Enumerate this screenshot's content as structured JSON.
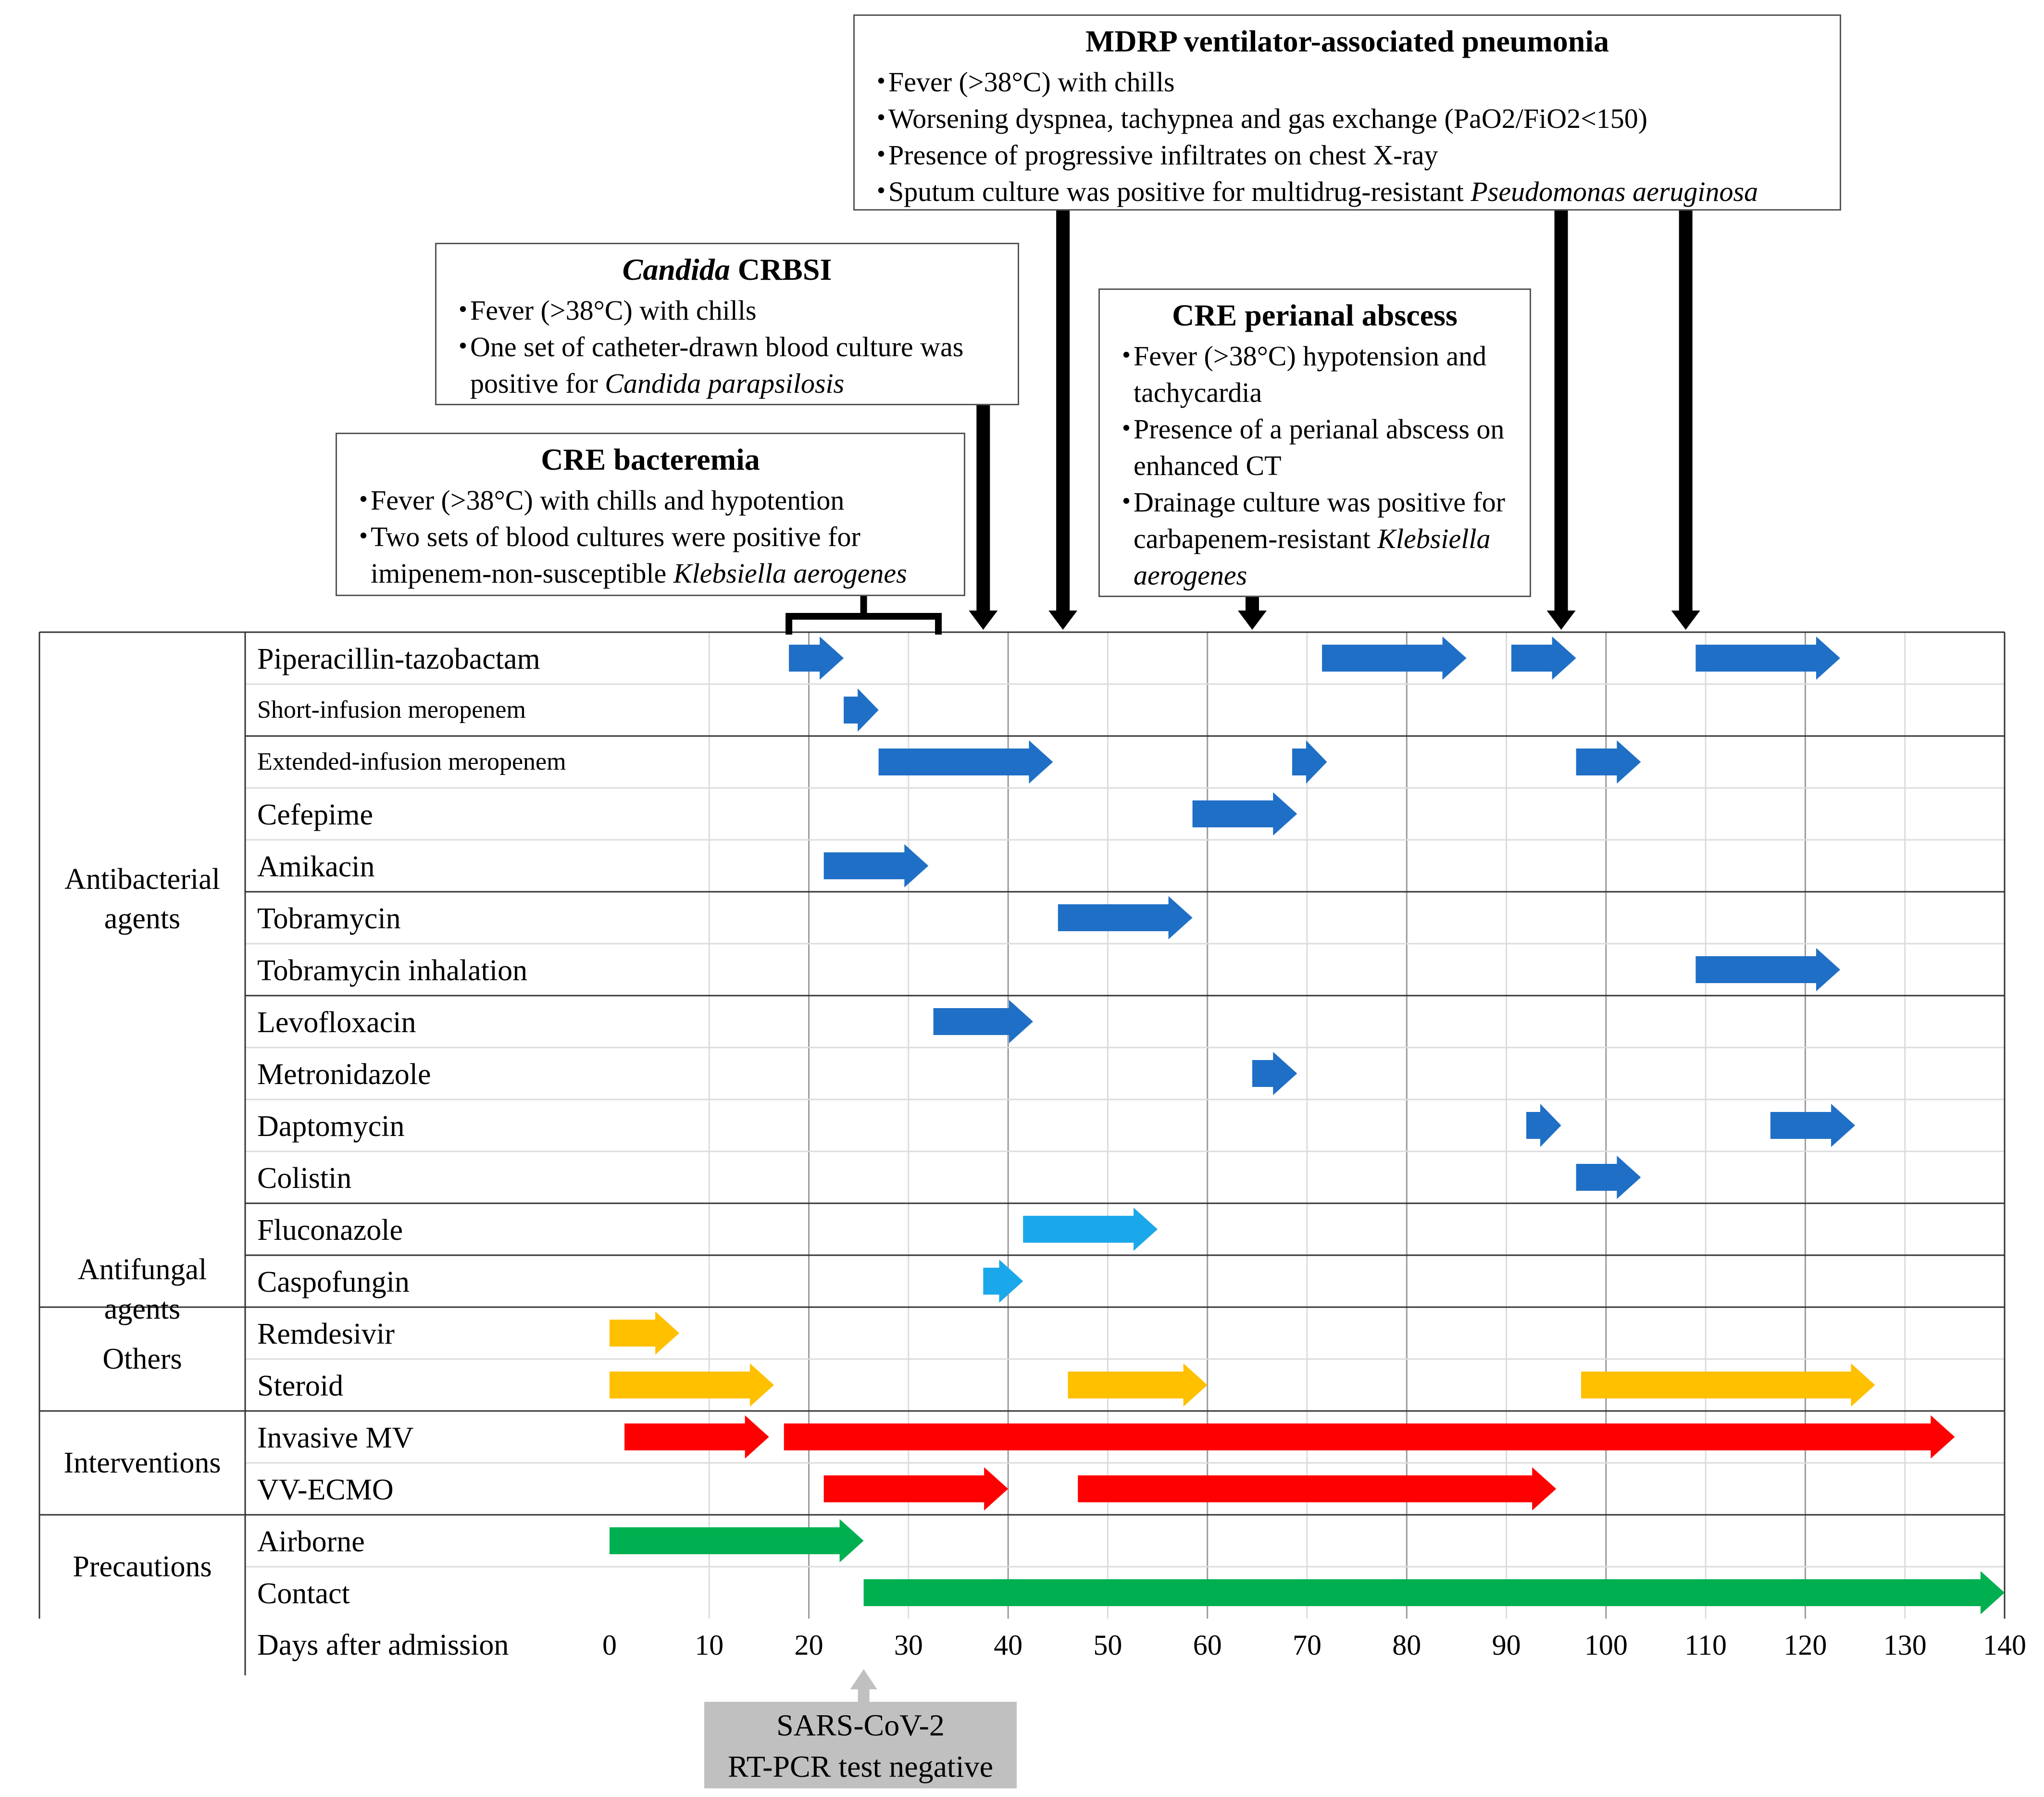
{
  "chart_data": {
    "type": "timeline",
    "xlabel": "Days after admission",
    "xlim": [
      0,
      140
    ],
    "xticks": [
      0,
      10,
      20,
      30,
      40,
      50,
      60,
      70,
      80,
      90,
      100,
      110,
      120,
      130,
      140
    ],
    "groups": [
      {
        "label": "Antibacterial agents",
        "first_row": 0,
        "last_row": 10
      },
      {
        "label": "Antifungal agents",
        "first_row": 11,
        "last_row": 12
      },
      {
        "label": "Others",
        "first_row": 13,
        "last_row": 14
      },
      {
        "label": "Interventions",
        "first_row": 15,
        "last_row": 16
      },
      {
        "label": "Precautions",
        "first_row": 17,
        "last_row": 18
      }
    ],
    "rows": [
      {
        "label": "Piperacillin-tazobactam",
        "color": "#1f6fc6",
        "small": false,
        "bars": [
          [
            18,
            23.5
          ],
          [
            71.5,
            86
          ],
          [
            90.5,
            97
          ],
          [
            109,
            123.5
          ]
        ]
      },
      {
        "label": "Short-infusion meropenem",
        "color": "#1f6fc6",
        "small": true,
        "bars": [
          [
            23.5,
            27
          ]
        ]
      },
      {
        "label": "Extended-infusion meropenem",
        "color": "#1f6fc6",
        "small": true,
        "bars": [
          [
            27,
            44.5
          ],
          [
            68.5,
            72
          ],
          [
            97,
            103.5
          ]
        ]
      },
      {
        "label": "Cefepime",
        "color": "#1f6fc6",
        "small": false,
        "bars": [
          [
            58.5,
            69
          ]
        ]
      },
      {
        "label": "Amikacin",
        "color": "#1f6fc6",
        "small": false,
        "bars": [
          [
            21.5,
            32
          ]
        ]
      },
      {
        "label": "Tobramycin",
        "color": "#1f6fc6",
        "small": false,
        "bars": [
          [
            45,
            58.5
          ]
        ]
      },
      {
        "label": "Tobramycin inhalation",
        "color": "#1f6fc6",
        "small": false,
        "bars": [
          [
            109,
            123.5
          ]
        ]
      },
      {
        "label": "Levofloxacin",
        "color": "#1f6fc6",
        "small": false,
        "bars": [
          [
            32.5,
            42.5
          ]
        ]
      },
      {
        "label": "Metronidazole",
        "color": "#1f6fc6",
        "small": false,
        "bars": [
          [
            64.5,
            69
          ]
        ]
      },
      {
        "label": "Daptomycin",
        "color": "#1f6fc6",
        "small": false,
        "bars": [
          [
            92,
            95.5
          ],
          [
            116.5,
            125
          ]
        ]
      },
      {
        "label": "Colistin",
        "color": "#1f6fc6",
        "small": false,
        "bars": [
          [
            97,
            103.5
          ]
        ]
      },
      {
        "label": "Fluconazole",
        "color": "#1ba8ea",
        "small": false,
        "bars": [
          [
            41.5,
            55
          ]
        ]
      },
      {
        "label": "Caspofungin",
        "color": "#1ba8ea",
        "small": false,
        "bars": [
          [
            37.5,
            41.5
          ]
        ]
      },
      {
        "label": "Remdesivir",
        "color": "#ffc000",
        "small": false,
        "bars": [
          [
            0,
            7
          ]
        ]
      },
      {
        "label": "Steroid",
        "color": "#ffc000",
        "small": false,
        "bars": [
          [
            0,
            16.5
          ],
          [
            46,
            60
          ],
          [
            97.5,
            127
          ]
        ]
      },
      {
        "label": "Invasive MV",
        "color": "#ff0000",
        "small": false,
        "bars": [
          [
            1.5,
            16
          ],
          [
            17.5,
            135
          ]
        ]
      },
      {
        "label": "VV-ECMO",
        "color": "#ff0000",
        "small": false,
        "bars": [
          [
            21.5,
            40
          ],
          [
            47,
            95
          ]
        ]
      },
      {
        "label": "Airborne",
        "color": "#00b050",
        "small": false,
        "bars": [
          [
            0,
            25.5
          ]
        ]
      },
      {
        "label": "Contact",
        "color": "#00b050",
        "small": false,
        "bars": [
          [
            25.5,
            140
          ]
        ]
      }
    ],
    "events": [
      {
        "title_parts": [
          {
            "text": "MDRP ventilator-associated pneumonia",
            "italic": false
          }
        ],
        "items": [
          [
            {
              "text": "Fever (>38°C) with chills",
              "italic": false
            }
          ],
          [
            {
              "text": "Worsening dyspnea, tachypnea and gas exchange (PaO2/FiO2<150)",
              "italic": false
            }
          ],
          [
            {
              "text": "Presence of progressive infiltrates on chest X-ray",
              "italic": false
            }
          ],
          [
            {
              "text": "Sputum culture was positive for multidrug-resistant ",
              "italic": false
            },
            {
              "text": "Pseudomonas aeruginosa",
              "italic": true
            }
          ]
        ],
        "marker_days": [
          45.5,
          95.5,
          108
        ]
      },
      {
        "title_parts": [
          {
            "text": "Candida",
            "italic": true
          },
          {
            "text": " CRBSI",
            "italic": false
          }
        ],
        "items": [
          [
            {
              "text": "Fever (>38°C) with chills",
              "italic": false
            }
          ],
          [
            {
              "text": "One set of catheter-drawn blood culture was positive for ",
              "italic": false
            },
            {
              "text": "Candida parapsilosis",
              "italic": true
            }
          ]
        ],
        "marker_days": [
          37.5
        ]
      },
      {
        "title_parts": [
          {
            "text": "CRE perianal abscess",
            "italic": false
          }
        ],
        "items": [
          [
            {
              "text": "Fever (>38°C) hypotension and tachycardia",
              "italic": false
            }
          ],
          [
            {
              "text": "Presence of a perianal abscess on enhanced CT",
              "italic": false
            }
          ],
          [
            {
              "text": "Drainage culture was positive for carbapenem-resistant ",
              "italic": false
            },
            {
              "text": "Klebsiella aerogenes",
              "italic": true
            }
          ]
        ],
        "marker_days": [
          64.5
        ]
      },
      {
        "title_parts": [
          {
            "text": "CRE bacteremia",
            "italic": false
          }
        ],
        "items": [
          [
            {
              "text": "Fever (>38°C) with chills and hypotention",
              "italic": false
            }
          ],
          [
            {
              "text": "Two sets of blood cultures were positive for imipenem-non-susceptible ",
              "italic": false
            },
            {
              "text": "Klebsiella aerogenes",
              "italic": true
            }
          ]
        ],
        "bracket_days": [
          18,
          33
        ]
      }
    ],
    "annotation": {
      "lines": [
        "SARS-CoV-2",
        "RT-PCR test negative"
      ],
      "day": 25.5,
      "color": "#c0c0c0"
    }
  }
}
